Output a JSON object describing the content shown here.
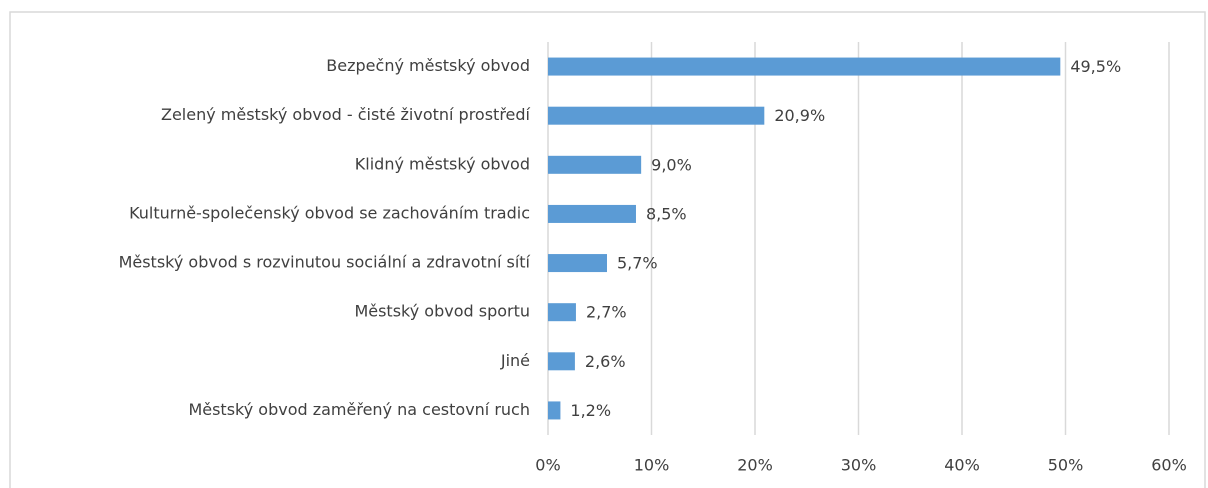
{
  "chart_data": {
    "type": "bar",
    "orientation": "horizontal",
    "categories": [
      "Bezpečný městský obvod",
      "Zelený městský obvod - čisté životní prostředí",
      "Klidný městský obvod",
      "Kulturně-společenský obvod se zachováním tradic",
      "Městský obvod s rozvinutou sociální a zdravotní sítí",
      "Městský obvod sportu",
      "Jiné",
      "Městský obvod zaměřený na cestovní ruch"
    ],
    "values": [
      49.5,
      20.9,
      9.0,
      8.5,
      5.7,
      2.7,
      2.6,
      1.2
    ],
    "value_labels": [
      "49,5%",
      "20,9%",
      "9,0%",
      "8,5%",
      "5,7%",
      "2,7%",
      "2,6%",
      "1,2%"
    ],
    "color": "#5b9bd5",
    "xlim": [
      0,
      60
    ],
    "xticks": [
      {
        "value": 0,
        "label": "0%"
      },
      {
        "value": 10,
        "label": "10%"
      },
      {
        "value": 20,
        "label": "20%"
      },
      {
        "value": 30,
        "label": "30%"
      },
      {
        "value": 40,
        "label": "40%"
      },
      {
        "value": 50,
        "label": "50%"
      },
      {
        "value": 60,
        "label": "60%"
      }
    ],
    "grid": true
  }
}
